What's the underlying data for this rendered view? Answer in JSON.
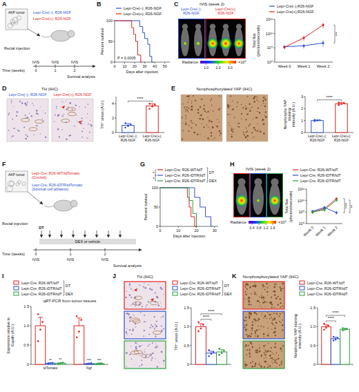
{
  "panel_letters": [
    "A",
    "B",
    "C",
    "D",
    "E",
    "F",
    "G",
    "H",
    "I",
    "J",
    "K"
  ],
  "schematic_A": {
    "tumor": "AKP tumor",
    "groups": [
      {
        "label": "Lepr-Cre(–); R26-NGF",
        "color": "#2d4fd1"
      },
      {
        "label": "Lepr-Cre(+); R26-NGF",
        "color": "#e3201c"
      }
    ],
    "injection": "Rectal injection",
    "time_label": "Time (weeks)",
    "weeks": [
      0,
      1,
      2
    ],
    "events": [
      "IVIS",
      "IVIS",
      "IVIS"
    ],
    "end": "Survival analysis"
  },
  "schematic_F": {
    "tumor": "AKP tumor",
    "groups": [
      {
        "label": "Lepr-Cre; R26-WT/tdTomato (Control)",
        "color": "#e3201c"
      },
      {
        "label": "Lepr-Cre; R26-iDTR/tdTomato (Stromal cell ablation)",
        "color": "#2d4fd1"
      }
    ],
    "injection": "Rectal injection",
    "treatment": "DT",
    "drug": "DEX or vehicle",
    "time_label": "Time (weeks)",
    "weeks": [
      0,
      1,
      2
    ],
    "events": [
      "IVIS",
      "IVIS",
      "IVIS"
    ],
    "end": "Survival analysis"
  },
  "images": {
    "C": {
      "title": "IVIS (week 2)",
      "labels": [
        "Lepr-Cre(–); R26-NGF",
        "Lepr-Cre(+); R26-NGF"
      ],
      "colors": [
        "#2d4fd1",
        "#e3201c"
      ],
      "colorbar": {
        "title": "Radiance",
        "range": [
          0.5,
          3.5
        ],
        "ticks": [
          {
            "value": 1,
            "label": "1.0"
          },
          {
            "value": 2,
            "label": "2.0"
          },
          {
            "value": 3,
            "label": "3.0"
          }
        ],
        "unit": "×10⁹"
      }
    },
    "D": {
      "title": "TH (IHC)",
      "labels": [
        "Lepr-Cre(–); R26-NGF",
        "Lepr-Cre(+); R26-NGF"
      ],
      "colors": [
        "#2d4fd1",
        "#e3201c"
      ]
    },
    "E": {
      "title": "Nonphosphorylated YAP (IHC)"
    },
    "H": {
      "title": "IVIS (week 2)",
      "colors": [
        "#e3201c",
        "#2d4fd1",
        "#2e9e3e"
      ],
      "colorbar": {
        "title": "Radiance",
        "range": [
          0.2,
          1.8
        ],
        "ticks": [
          0.4,
          0.8,
          1.2,
          1.6
        ],
        "unit": "×10⁹"
      }
    },
    "J": {
      "title": "TH (IHC)",
      "colors": [
        "#e3201c",
        "#2d4fd1",
        "#2e9e3e"
      ]
    },
    "K": {
      "title": "Nonphosphorylated YAP (IHC)",
      "colors": [
        "#e3201c",
        "#2d4fd1",
        "#2e9e3e"
      ]
    }
  },
  "chart_data": [
    {
      "type": "survival",
      "x_label": "Days after injection",
      "y_label": "Percent survival",
      "xlim": [
        0,
        55
      ],
      "xticks": [
        0,
        10,
        20,
        30,
        40,
        50
      ],
      "ylim": [
        0,
        100
      ],
      "yticks": [
        0,
        50,
        100
      ],
      "legend": "top",
      "series": [
        {
          "name": "Lepr-Cre(–); R26-NGF",
          "color": "#2d4fd1",
          "x": [
            0,
            25,
            28,
            30,
            33,
            35,
            37
          ],
          "values": [
            100,
            86,
            71,
            57,
            43,
            14,
            0
          ]
        },
        {
          "name": "Lepr-Cre(+); R26-NGF",
          "color": "#e3201c",
          "x": [
            0,
            17,
            19,
            21,
            23,
            26
          ],
          "values": [
            100,
            83,
            67,
            50,
            17,
            0
          ]
        }
      ],
      "annotations": [
        "P = 0.0005"
      ]
    },
    {
      "type": "line",
      "log": "y",
      "categories": [
        "Week 0",
        "Week 1",
        "Week 2"
      ],
      "y_label": "Total flux (photons/seconds)",
      "ylim": [
        100000000,
        100000000000
      ],
      "yticks": [
        {
          "value": 100000000,
          "label": "10⁸"
        },
        {
          "value": 1000000000,
          "label": "10⁹"
        },
        {
          "value": 10000000000,
          "label": "10¹⁰"
        },
        {
          "value": 100000000000,
          "label": "10¹¹"
        }
      ],
      "legend": "top",
      "series": [
        {
          "name": "Lepr-Cre(–);R26-NGF",
          "color": "#2d4fd1",
          "values": [
            1200000000,
            1400000000,
            2200000000
          ],
          "errors": [
            300000000,
            500000000,
            1000000000
          ]
        },
        {
          "name": "Lepr-Cre(+);R26-NGF",
          "color": "#e3201c",
          "values": [
            1100000000,
            5000000000,
            40000000000
          ],
          "errors": [
            300000000,
            2000000000,
            15000000000
          ]
        }
      ],
      "significance": [
        "***"
      ]
    },
    {
      "type": "bar",
      "categories": [
        "Lepr-Cre(–); R26-NGF",
        "Lepr-Cre(+); R26-NGF"
      ],
      "values": [
        1,
        3.7
      ],
      "errors": [
        0.25,
        0.3
      ],
      "points": [
        [
          0.7,
          0.9,
          1.1,
          1.3
        ],
        [
          3.3,
          3.6,
          3.9,
          4
        ]
      ],
      "colors": [
        "#2d4fd1",
        "#e3201c"
      ],
      "y_label": "TH⁺ areas (A.U.)",
      "ylim": [
        0,
        5
      ],
      "yticks": [
        0,
        2,
        4
      ],
      "significance": [
        "****"
      ]
    },
    {
      "type": "bar",
      "categories": [
        "Lepr-Cre(–); R26-NGF",
        "Lepr-Cre(+); R26-NGF"
      ],
      "values": [
        1,
        2.4
      ],
      "errors": [
        0.05,
        0.1
      ],
      "points": [
        [
          0.95,
          1,
          1.02,
          1.05
        ],
        [
          2.3,
          2.38,
          2.45,
          2.5
        ]
      ],
      "colors": [
        "#2d4fd1",
        "#e3201c"
      ],
      "y_label": "Nonphospho YAP staining intensity (A.U.)",
      "ylim": [
        0,
        3
      ],
      "yticks": [
        0,
        1,
        2,
        3
      ],
      "significance": [
        "****"
      ]
    },
    {
      "type": "survival",
      "x_label": "Days after injection",
      "y_label": "Percent survival",
      "xlim": [
        0,
        32
      ],
      "xticks": [
        0,
        10,
        20,
        30
      ],
      "ylim": [
        0,
        100
      ],
      "yticks": [
        0,
        50,
        100
      ],
      "legend": "top",
      "legend_labels": [
        "DT",
        "DEX"
      ],
      "series": [
        {
          "name": "Lepr-Cre; R26-WT/tdT",
          "color": "#e3201c",
          "x": [
            0,
            15,
            16,
            17,
            19
          ],
          "values": [
            100,
            75,
            50,
            25,
            0
          ]
        },
        {
          "name": "Lepr-Cre; R26-iDTR/tdT",
          "color": "#2d4fd1",
          "x": [
            0,
            19,
            22,
            25,
            28
          ],
          "values": [
            100,
            75,
            50,
            25,
            0
          ]
        },
        {
          "name": "Lepr-Cre; R26-iDTR/tdT",
          "color": "#2e9e3e",
          "x": [
            0,
            16,
            18,
            20
          ],
          "values": [
            100,
            67,
            33,
            0
          ]
        }
      ],
      "significance": [
        "*",
        "*"
      ]
    },
    {
      "type": "line",
      "log": "y",
      "categories": [
        "Week 0",
        "Week 1",
        "Week 2"
      ],
      "y_label": "Total flux (photons/seconds)",
      "ylim": [
        100000000,
        100000000000
      ],
      "yticks": [
        {
          "value": 100000000,
          "label": "10⁸"
        },
        {
          "value": 1000000000,
          "label": "10⁹"
        },
        {
          "value": 10000000000,
          "label": "10¹⁰"
        },
        {
          "value": 100000000000,
          "label": "10¹¹"
        }
      ],
      "legend": "top",
      "series": [
        {
          "name": "Lepr-Cre; R26-WT/tdT",
          "color": "#e3201c",
          "values": [
            1000000000,
            2000000000,
            15000000000
          ],
          "errors": [
            300000000,
            600000000,
            4000000000
          ]
        },
        {
          "name": "Lepr-Cre; R26-iDTR/tdT",
          "color": "#2d4fd1",
          "values": [
            1200000000,
            2500000000,
            900000000
          ],
          "errors": [
            300000000,
            800000000,
            300000000
          ]
        },
        {
          "name": "Lepr-Cre; R26-iDTR/tdT",
          "color": "#2e9e3e",
          "values": [
            1000000000,
            1600000000,
            11000000000
          ],
          "errors": [
            300000000,
            500000000,
            3000000000
          ]
        }
      ],
      "significance": [
        "****",
        "**"
      ]
    },
    {
      "type": "bar",
      "title": "qRT-PCR from tumor tissues",
      "categories": [
        "tdTomato",
        "Ngf"
      ],
      "y_label": "Expression relative to Gapdh (A.U.)",
      "ylim": [
        0,
        1.5
      ],
      "yticks": [
        0,
        0.5,
        {
          "value": 1,
          "label": "1.0"
        },
        1.5
      ],
      "legend": "top",
      "legend_labels": [
        "DT",
        "DEX"
      ],
      "series": [
        {
          "name": "Lepr-Cre; R26-WT/tdT",
          "color": "#e3201c",
          "values": [
            1,
            1
          ],
          "errors": [
            0.22,
            0.2
          ],
          "points": [
            [
              0.6,
              0.9,
              1.1,
              1.3
            ],
            [
              0.7,
              0.85,
              1.15,
              1.25
            ]
          ]
        },
        {
          "name": "Lepr-Cre; R26-iDTR/tdT",
          "color": "#2d4fd1",
          "values": [
            0.03,
            0.02
          ],
          "errors": [
            0.01,
            0.01
          ],
          "points": [
            [
              0.02,
              0.03,
              0.04
            ],
            [
              0.01,
              0.02,
              0.03
            ]
          ]
        },
        {
          "name": "Lepr-Cre; R26-iDTR/tdT",
          "color": "#2e9e3e",
          "values": [
            0.03,
            0.02
          ],
          "errors": [
            0.01,
            0.01
          ],
          "points": [
            [
              0.02,
              0.03,
              0.05
            ],
            [
              0.01,
              0.02,
              0.03
            ]
          ]
        }
      ],
      "significance": [
        "**",
        "**",
        "***",
        "***"
      ]
    },
    {
      "type": "bar",
      "categories": [
        null
      ],
      "y_label": "TH⁺ areas (A.U.)",
      "ylim": [
        0,
        1.5
      ],
      "yticks": [
        0,
        0.5,
        {
          "value": 1,
          "label": "1.0"
        },
        1.5
      ],
      "legend": "top",
      "legend_labels": [
        "DT",
        "DEX"
      ],
      "series": [
        {
          "name": "Lepr-Cre; R26-WT/tdT",
          "color": "#e3201c",
          "values": [
            1
          ],
          "errors": [
            0.08
          ],
          "points": [
            [
              0.88,
              0.95,
              1.05,
              1.12
            ]
          ]
        },
        {
          "name": "Lepr-Cre; R26-iDTR/tdT",
          "color": "#2d4fd1",
          "values": [
            0.3
          ],
          "errors": [
            0.05
          ],
          "points": [
            [
              0.22,
              0.28,
              0.33,
              0.38
            ]
          ]
        },
        {
          "name": "Lepr-Cre; R26-iDTR/tdT",
          "color": "#2e9e3e",
          "values": [
            0.33
          ],
          "errors": [
            0.06
          ],
          "points": [
            [
              0.25,
              0.3,
              0.36,
              0.42
            ]
          ]
        }
      ],
      "significance": [
        "****",
        "****"
      ]
    },
    {
      "type": "bar",
      "categories": [
        null
      ],
      "y_label": "Nonphospho YAP staining intensity (A.U.)",
      "ylim": [
        0,
        1.5
      ],
      "yticks": [
        0,
        0.5,
        {
          "value": 1,
          "label": "1.0"
        },
        1.5
      ],
      "legend": "top",
      "series": [
        {
          "name": "Lepr-Cre; R26-WT/tdT",
          "color": "#e3201c",
          "values": [
            1
          ],
          "errors": [
            0.05
          ],
          "points": [
            [
              0.92,
              0.97,
              1.03,
              1.08
            ]
          ]
        },
        {
          "name": "Lepr-Cre; R26-iDTR/tdT",
          "color": "#2d4fd1",
          "values": [
            0.68
          ],
          "errors": [
            0.04
          ],
          "points": [
            [
              0.63,
              0.66,
              0.7,
              0.73
            ]
          ]
        },
        {
          "name": "Lepr-Cre; R26-iDTR/tdT",
          "color": "#2e9e3e",
          "values": [
            0.93
          ],
          "errors": [
            0.03
          ],
          "points": [
            [
              0.9,
              0.92,
              0.94,
              0.96
            ]
          ]
        }
      ],
      "significance": [
        "****",
        "****"
      ]
    }
  ]
}
